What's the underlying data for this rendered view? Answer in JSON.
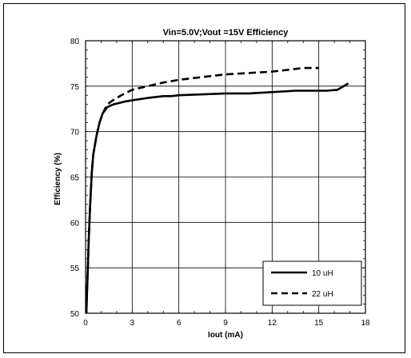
{
  "chart_data": {
    "type": "line",
    "title": "Vin=5.0V;Vout =15V Efficiency",
    "xlabel": "Iout (mA)",
    "ylabel": "Efficiency (%)",
    "xlim": [
      0,
      18
    ],
    "ylim": [
      50,
      80
    ],
    "xticks": [
      0,
      3,
      6,
      9,
      12,
      15,
      18
    ],
    "yticks": [
      50,
      55,
      60,
      65,
      70,
      75,
      80
    ],
    "grid": true,
    "legend_position": "bottom-right",
    "series": [
      {
        "name": "10 uH",
        "style": "solid",
        "x": [
          0.05,
          0.1,
          0.15,
          0.2,
          0.3,
          0.4,
          0.5,
          0.7,
          0.9,
          1.1,
          1.4,
          1.8,
          2.5,
          3.2,
          4.0,
          5.0,
          5.5,
          6.0,
          7.5,
          9.0,
          10.5,
          11.5,
          12.5,
          13.5,
          14.5,
          15.5,
          16.2,
          16.5,
          16.9
        ],
        "y": [
          50.0,
          52.5,
          55.0,
          58.0,
          62.0,
          65.5,
          67.5,
          69.5,
          71.0,
          72.0,
          72.7,
          73.0,
          73.3,
          73.5,
          73.7,
          73.9,
          73.9,
          74.0,
          74.1,
          74.2,
          74.2,
          74.3,
          74.4,
          74.5,
          74.5,
          74.5,
          74.6,
          74.9,
          75.3
        ]
      },
      {
        "name": "22 uH",
        "style": "dashed",
        "x": [
          0.05,
          0.1,
          0.15,
          0.2,
          0.3,
          0.4,
          0.5,
          0.7,
          0.9,
          1.1,
          1.4,
          1.8,
          2.3,
          3.0,
          4.0,
          5.0,
          6.0,
          7.0,
          8.0,
          9.0,
          10.0,
          11.0,
          12.0,
          13.0,
          14.0,
          15.0
        ],
        "y": [
          50.0,
          52.5,
          55.0,
          58.0,
          62.0,
          65.5,
          67.5,
          69.5,
          71.0,
          72.0,
          73.0,
          73.5,
          74.0,
          74.6,
          75.0,
          75.4,
          75.7,
          75.9,
          76.1,
          76.3,
          76.4,
          76.5,
          76.6,
          76.8,
          77.0,
          77.0
        ]
      }
    ]
  }
}
